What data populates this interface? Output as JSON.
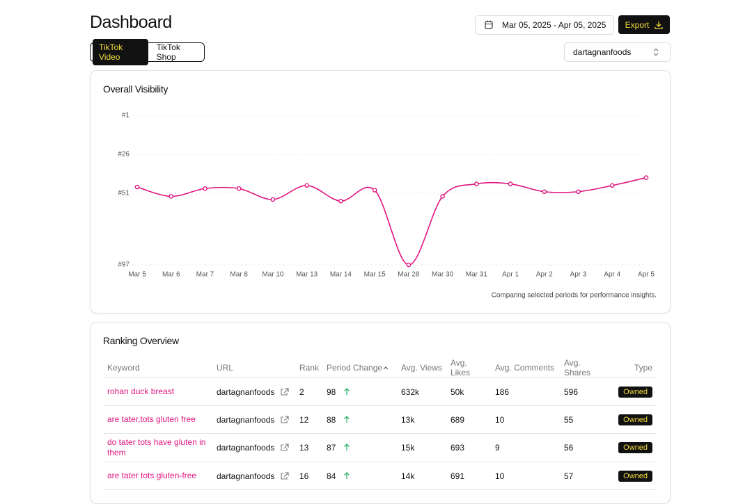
{
  "header": {
    "title": "Dashboard",
    "date_range": "Mar 05, 2025 - Apr 05, 2025",
    "export": "Export"
  },
  "tabs": [
    "TikTok Video",
    "TikTok Shop"
  ],
  "account": "dartagnanfoods",
  "chart_data": {
    "type": "line",
    "title": "Overall Visibility",
    "categories": [
      "Mar 5",
      "Mar 6",
      "Mar 7",
      "Mar 8",
      "Mar 10",
      "Mar 13",
      "Mar 14",
      "Mar 15",
      "Mar 28",
      "Mar 30",
      "Mar 31",
      "Apr 1",
      "Apr 2",
      "Apr 3",
      "Apr 4",
      "Apr 5"
    ],
    "values": [
      47,
      53,
      48,
      48,
      55,
      46,
      56,
      49,
      97,
      53,
      45,
      45,
      50,
      50,
      46,
      41
    ],
    "color": "#e0147f",
    "ylim": [
      97,
      1
    ],
    "yticks": [
      {
        "value": 1,
        "label": "#1"
      },
      {
        "value": 26,
        "label": "#26"
      },
      {
        "value": 51,
        "label": "#51"
      },
      {
        "value": 97,
        "label": "#97"
      }
    ],
    "grid": true,
    "note": "Comparing selected periods for performance insights."
  },
  "table": {
    "title": "Ranking Overview",
    "columns": [
      "Keyword",
      "URL",
      "Rank",
      "Period Change",
      "Avg. Views",
      "Avg. Likes",
      "Avg. Comments",
      "Avg. Shares",
      "Type"
    ],
    "rows": [
      [
        "rohan duck breast",
        "dartagnanfoods",
        2,
        98,
        "632k",
        "50k",
        186,
        596,
        "Owned"
      ],
      [
        "are tater,tots gluten free",
        "dartagnanfoods",
        12,
        88,
        "13k",
        689,
        10,
        55,
        "Owned"
      ],
      [
        "do tater tots have gluten in them",
        "dartagnanfoods",
        13,
        87,
        "15k",
        693,
        9,
        56,
        "Owned"
      ],
      [
        "are tater tots gluten-free",
        "dartagnanfoods",
        16,
        84,
        "14k",
        691,
        10,
        57,
        "Owned"
      ]
    ]
  }
}
